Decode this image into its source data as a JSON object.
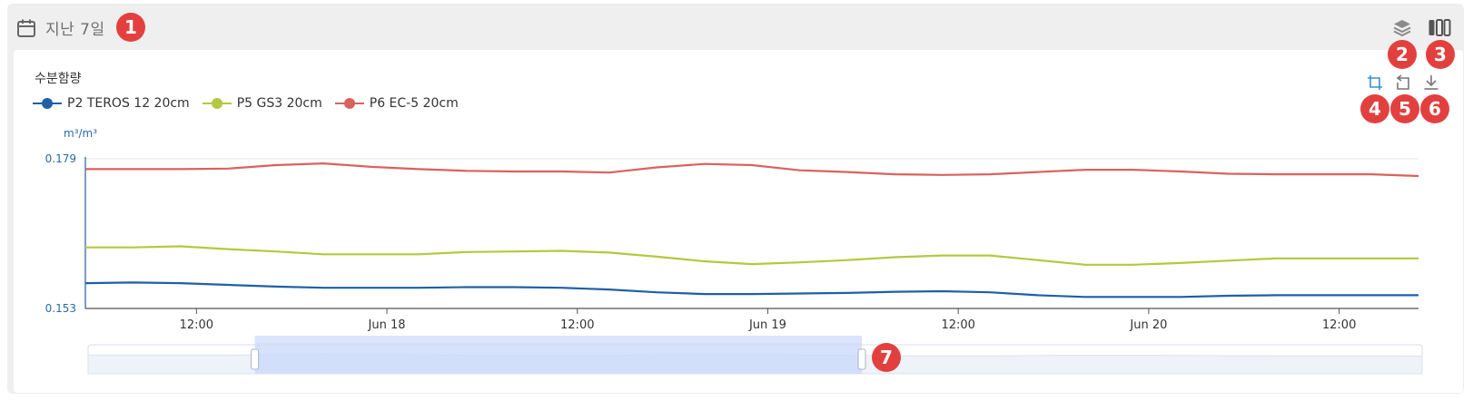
{
  "header": {
    "date_range_label": "지난 7일"
  },
  "chart_title": "수분함량",
  "y_unit": "m³/m³",
  "legend": [
    {
      "name": "P2 TEROS 12 20cm",
      "color": "#1f5fa8"
    },
    {
      "name": "P5 GS3 20cm",
      "color": "#b5c83e"
    },
    {
      "name": "P6 EC-5 20cm",
      "color": "#d9625e"
    }
  ],
  "badges": [
    "1",
    "2",
    "3",
    "4",
    "5",
    "6",
    "7"
  ],
  "icons": {
    "calendar": "calendar-icon",
    "layers": "layers-icon",
    "columns": "columns-icon",
    "zoom": "zoom-select-icon",
    "reset": "zoom-reset-icon",
    "download": "download-icon"
  },
  "chart_data": {
    "type": "line",
    "ylabel": "m³/m³",
    "ylim": [
      0.153,
      0.179
    ],
    "y_ticks": [
      "0.179",
      "0.153"
    ],
    "x_ticks": [
      "12:00",
      "Jun 18",
      "12:00",
      "Jun 19",
      "12:00",
      "Jun 20",
      "12:00"
    ],
    "x_tick_hours": [
      12,
      24,
      36,
      48,
      60,
      72,
      84
    ],
    "x_range_hours": [
      5,
      89
    ],
    "x": [
      5,
      8,
      11,
      14,
      17,
      20,
      23,
      26,
      29,
      32,
      35,
      38,
      41,
      44,
      47,
      50,
      53,
      56,
      59,
      62,
      65,
      68,
      71,
      74,
      77,
      80,
      83,
      86,
      89
    ],
    "series": [
      {
        "name": "P2 TEROS 12 20cm",
        "color": "#1f5fa8",
        "values": [
          0.1574,
          0.1575,
          0.1574,
          0.1571,
          0.1568,
          0.1566,
          0.1566,
          0.1566,
          0.1567,
          0.1567,
          0.1566,
          0.1563,
          0.1558,
          0.1555,
          0.1555,
          0.1556,
          0.1557,
          0.1559,
          0.156,
          0.1558,
          0.1553,
          0.155,
          0.155,
          0.155,
          0.1552,
          0.1553,
          0.1553,
          0.1553,
          0.1553
        ]
      },
      {
        "name": "P5 GS3 20cm",
        "color": "#b5c83e",
        "values": [
          0.1636,
          0.1636,
          0.1638,
          0.1633,
          0.1629,
          0.1624,
          0.1624,
          0.1624,
          0.1628,
          0.1629,
          0.163,
          0.1627,
          0.162,
          0.1612,
          0.1607,
          0.161,
          0.1614,
          0.1619,
          0.1622,
          0.1622,
          0.1614,
          0.1606,
          0.1606,
          0.1609,
          0.1613,
          0.1617,
          0.1617,
          0.1617,
          0.1617
        ]
      },
      {
        "name": "P6 EC-5 20cm",
        "color": "#d9625e",
        "values": [
          0.1772,
          0.1772,
          0.1772,
          0.1773,
          0.1779,
          0.1782,
          0.1776,
          0.1772,
          0.1769,
          0.1768,
          0.1768,
          0.1766,
          0.1775,
          0.1781,
          0.1779,
          0.177,
          0.1767,
          0.1763,
          0.1762,
          0.1763,
          0.1767,
          0.1771,
          0.1771,
          0.1768,
          0.1764,
          0.1763,
          0.1763,
          0.1763,
          0.176
        ]
      }
    ],
    "navigator": {
      "selected_start": 0.125,
      "selected_end": 0.58
    }
  }
}
